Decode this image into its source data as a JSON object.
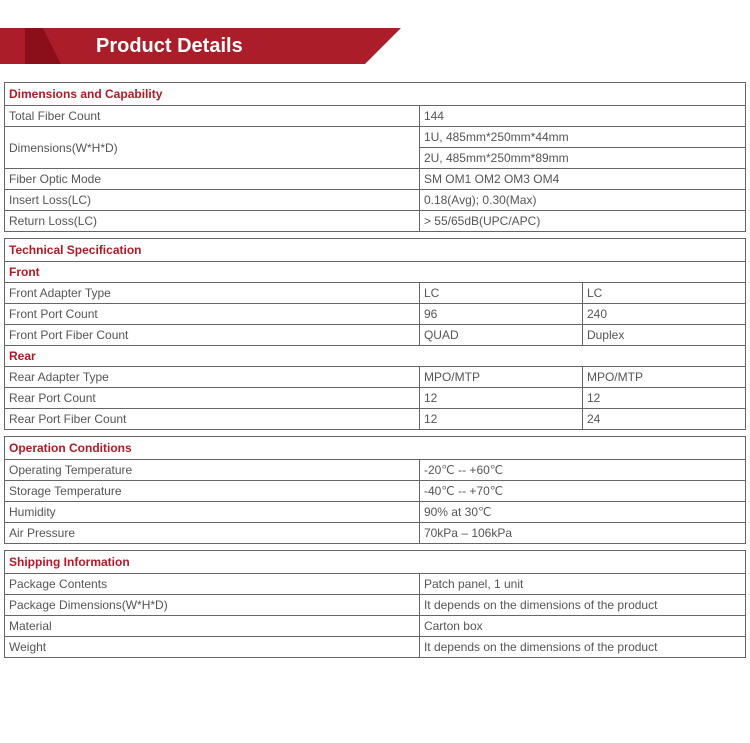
{
  "page_title": "Product Details",
  "colors": {
    "brand_red": "#ab1d28",
    "brand_red_dark": "#8a0f1a",
    "header_text": "#b01a27",
    "border": "#666666",
    "body_text": "#555555",
    "background": "#ffffff"
  },
  "sections": {
    "dimensions_capability": {
      "header": "Dimensions and Capability",
      "rows": {
        "total_fiber_count": {
          "label": "Total Fiber Count",
          "value": "144"
        },
        "dimensions": {
          "label": "Dimensions(W*H*D)",
          "value1": "1U, 485mm*250mm*44mm",
          "value2": "2U, 485mm*250mm*89mm"
        },
        "fiber_optic_mode": {
          "label": "Fiber Optic Mode",
          "value": "SM OM1 OM2 OM3 OM4"
        },
        "insert_loss": {
          "label": "Insert Loss(LC)",
          "value": "0.18(Avg); 0.30(Max)"
        },
        "return_loss": {
          "label": "Return Loss(LC)",
          "value": "> 55/65dB(UPC/APC)"
        }
      }
    },
    "technical_specification": {
      "header": "Technical Specification",
      "front": {
        "sub": "Front",
        "rows": {
          "adapter_type": {
            "label": "Front Adapter Type",
            "a": "LC",
            "b": "LC"
          },
          "port_count": {
            "label": "Front Port Count",
            "a": "96",
            "b": "240"
          },
          "fiber_count": {
            "label": "Front Port Fiber Count",
            "a": "QUAD",
            "b": "Duplex"
          }
        }
      },
      "rear": {
        "sub": "Rear",
        "rows": {
          "adapter_type": {
            "label": "Rear Adapter Type",
            "a": "MPO/MTP",
            "b": "MPO/MTP"
          },
          "port_count": {
            "label": "Rear Port Count",
            "a": "12",
            "b": "12"
          },
          "fiber_count": {
            "label": "Rear Port Fiber Count",
            "a": "12",
            "b": "24"
          }
        }
      }
    },
    "operation_conditions": {
      "header": "Operation Conditions",
      "rows": {
        "operating_temp": {
          "label": "Operating Temperature",
          "value": "-20℃ -- +60℃"
        },
        "storage_temp": {
          "label": "Storage Temperature",
          "value": "-40℃ -- +70℃"
        },
        "humidity": {
          "label": "Humidity",
          "value": "90% at 30℃"
        },
        "air_pressure": {
          "label": "Air Pressure",
          "value": "70kPa – 106kPa"
        }
      }
    },
    "shipping_information": {
      "header": "Shipping Information",
      "rows": {
        "package_contents": {
          "label": "Package Contents",
          "value": "Patch panel, 1 unit"
        },
        "package_dimensions": {
          "label": "Package Dimensions(W*H*D)",
          "value": "It depends on the dimensions of the product"
        },
        "material": {
          "label": "Material",
          "value": "Carton box"
        },
        "weight": {
          "label": "Weight",
          "value": "It depends on the dimensions of the product"
        }
      }
    }
  }
}
